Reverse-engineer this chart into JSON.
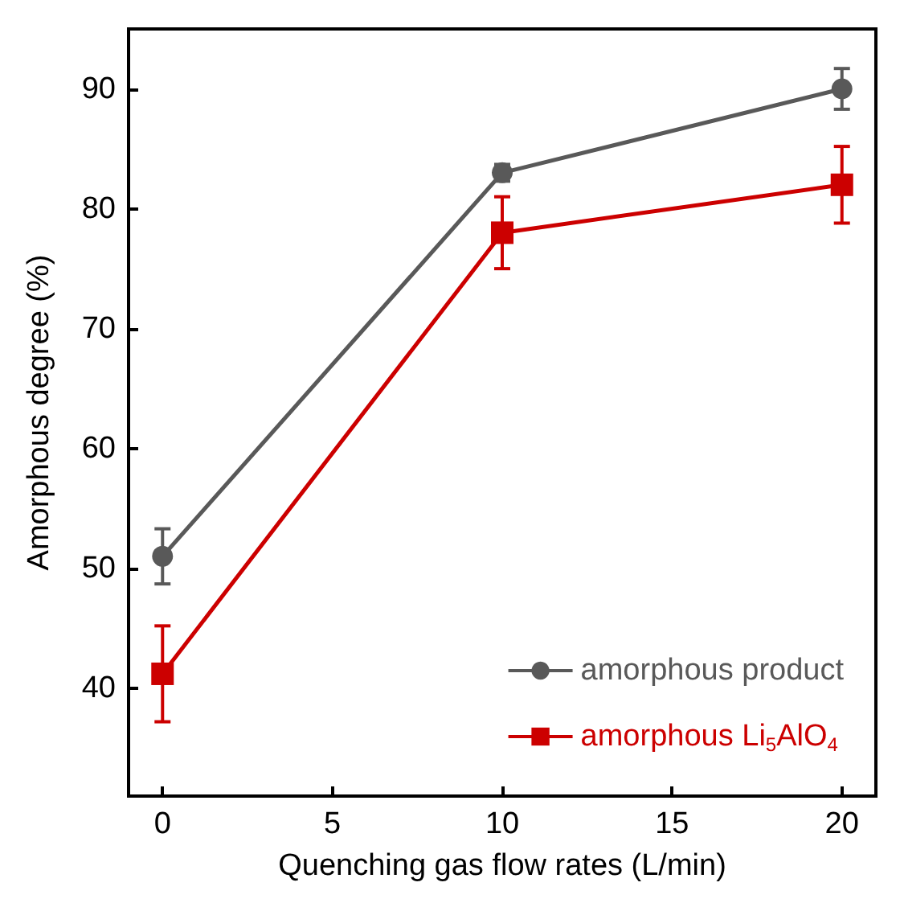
{
  "chart_data": {
    "type": "line",
    "xlabel": "Quenching gas flow rates (L/min)",
    "ylabel": "Amorphous degree (%)",
    "x": [
      0,
      10,
      20
    ],
    "series": [
      {
        "name": "amorphous product",
        "color": "#595959",
        "marker": "circle",
        "values": [
          51,
          83,
          90
        ],
        "errors": [
          2.3,
          0.7,
          1.7
        ]
      },
      {
        "name": "amorphous Li$_{5}$AlO$_{4}$",
        "color": "#cc0000",
        "marker": "square",
        "values": [
          41.2,
          78,
          82
        ],
        "errors": [
          4,
          3,
          3.2
        ]
      }
    ],
    "xlim": [
      -1,
      21
    ],
    "xticks": [
      0,
      5,
      10,
      15,
      20
    ],
    "ylim": [
      31,
      95
    ],
    "yticks": [
      40,
      50,
      60,
      70,
      80,
      90
    ],
    "legend": "bottom right",
    "line_style": "solid"
  }
}
